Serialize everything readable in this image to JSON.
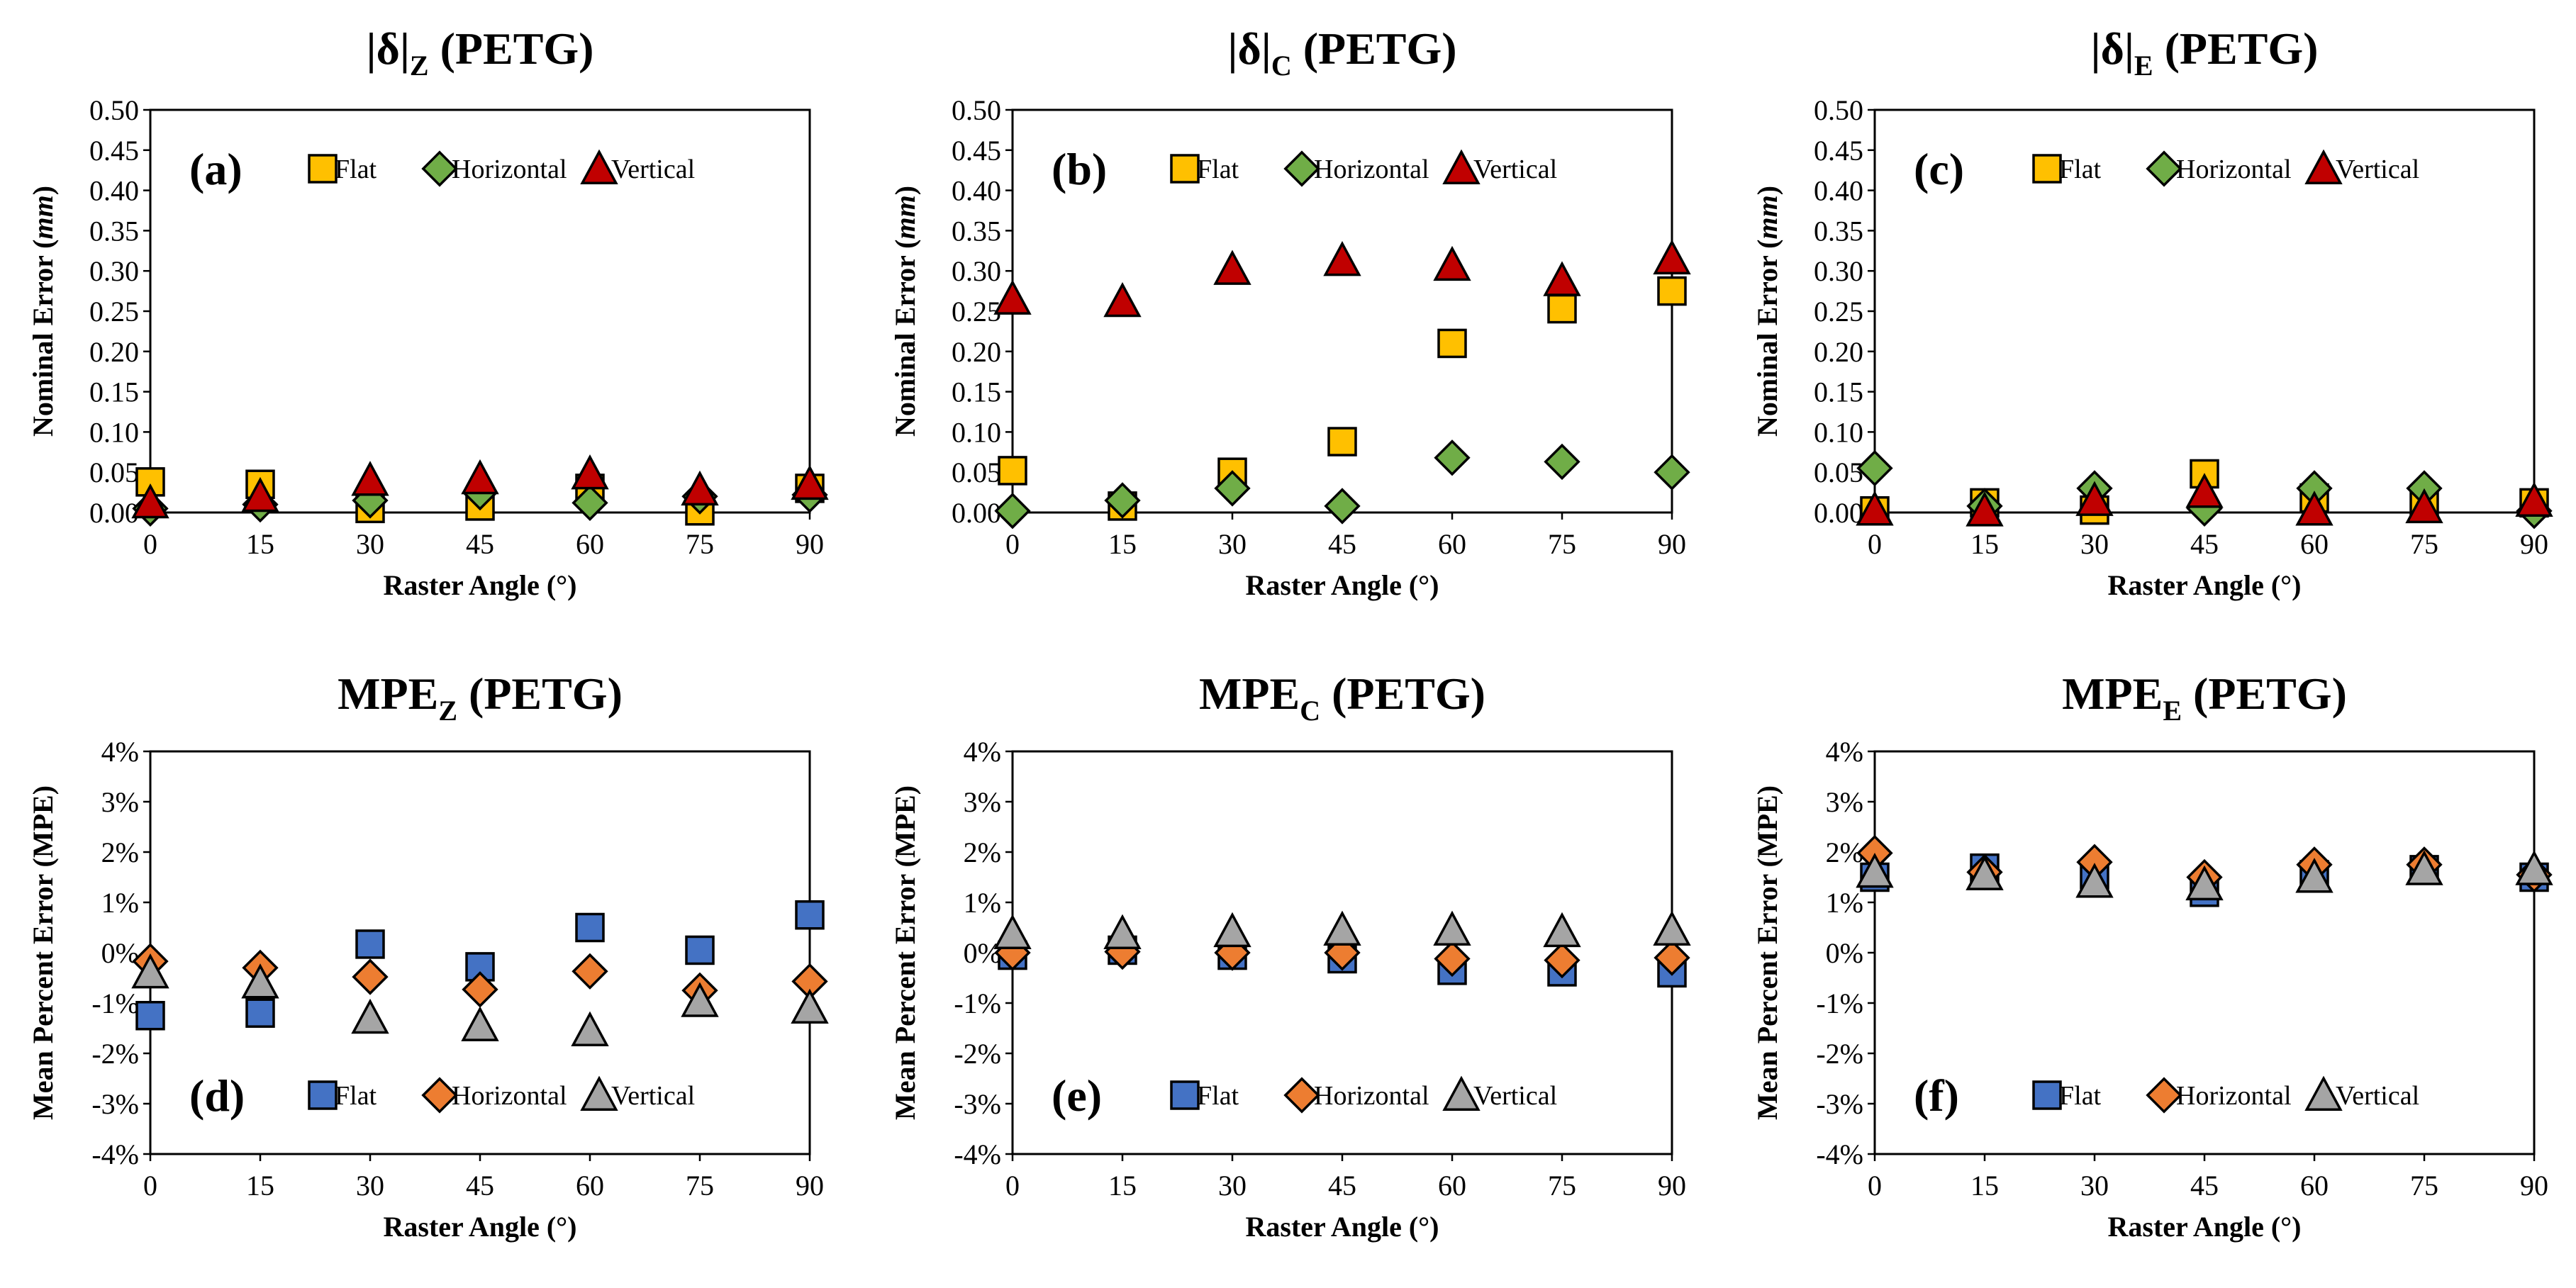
{
  "figure_name": "PETG raster angle error figure",
  "colors": {
    "flat_top": "#FFC000",
    "horizontal_top": "#70AD47",
    "vertical_top": "#C00000",
    "flat_bottom": "#4472C4",
    "horizontal_bottom": "#ED7D31",
    "vertical_bottom": "#A5A5A5",
    "marker_edge": "#000000"
  },
  "chart_data": [
    {
      "id": "a",
      "type": "scatter",
      "title": "|δ|",
      "title_subscript": "Z",
      "title_suffix": "(PETG)",
      "panel_label": "(a)",
      "xlabel": "Raster Angle (°)",
      "ylabel_prefix": "Nominal  Error (",
      "ylabel_unit": "mm",
      "ylabel_suffix": ")",
      "x": [
        0,
        15,
        30,
        45,
        60,
        75,
        90
      ],
      "xlim": [
        0,
        90
      ],
      "ylim": [
        0,
        0.5
      ],
      "yticks": [
        0,
        0.05,
        0.1,
        0.15,
        0.2,
        0.25,
        0.3,
        0.35,
        0.4,
        0.45,
        0.5
      ],
      "ytick_labels": [
        "0.00",
        "0.05",
        "0.10",
        "0.15",
        "0.20",
        "0.25",
        "0.30",
        "0.35",
        "0.40",
        "0.45",
        "0.50"
      ],
      "xtick_labels": [
        "0",
        "15",
        "30",
        "45",
        "60",
        "75",
        "90"
      ],
      "legend_position": "top",
      "series": [
        {
          "name": "Flat",
          "marker": "square",
          "color_key": "flat_top",
          "values": [
            0.038,
            0.035,
            0.005,
            0.008,
            0.03,
            0.002,
            0.03
          ]
        },
        {
          "name": "Horizontal",
          "marker": "diamond",
          "color_key": "horizontal_top",
          "values": [
            0.005,
            0.01,
            0.015,
            0.025,
            0.012,
            0.02,
            0.022
          ]
        },
        {
          "name": "Vertical",
          "marker": "triangle",
          "color_key": "vertical_top",
          "values": [
            0.012,
            0.02,
            0.04,
            0.042,
            0.048,
            0.028,
            0.035
          ]
        }
      ]
    },
    {
      "id": "b",
      "type": "scatter",
      "title": "|δ|",
      "title_subscript": "C",
      "title_suffix": "(PETG)",
      "panel_label": "(b)",
      "xlabel": "Raster Angle (°)",
      "ylabel_prefix": "Nominal Error (",
      "ylabel_unit": "mm",
      "ylabel_suffix": ")",
      "x": [
        0,
        15,
        30,
        45,
        60,
        75,
        90
      ],
      "xlim": [
        0,
        90
      ],
      "ylim": [
        0,
        0.5
      ],
      "yticks": [
        0,
        0.05,
        0.1,
        0.15,
        0.2,
        0.25,
        0.3,
        0.35,
        0.4,
        0.45,
        0.5
      ],
      "ytick_labels": [
        "0.00",
        "0.05",
        "0.10",
        "0.15",
        "0.20",
        "0.25",
        "0.30",
        "0.35",
        "0.40",
        "0.45",
        "0.50"
      ],
      "xtick_labels": [
        "0",
        "15",
        "30",
        "45",
        "60",
        "75",
        "90"
      ],
      "legend_position": "top",
      "series": [
        {
          "name": "Flat",
          "marker": "square",
          "color_key": "flat_top",
          "values": [
            0.052,
            0.008,
            0.05,
            0.088,
            0.21,
            0.253,
            0.275
          ]
        },
        {
          "name": "Horizontal",
          "marker": "diamond",
          "color_key": "horizontal_top",
          "values": [
            0.002,
            0.015,
            0.03,
            0.008,
            0.068,
            0.063,
            0.05
          ]
        },
        {
          "name": "Vertical",
          "marker": "triangle",
          "color_key": "vertical_top",
          "values": [
            0.265,
            0.262,
            0.302,
            0.313,
            0.307,
            0.288,
            0.315
          ]
        }
      ]
    },
    {
      "id": "c",
      "type": "scatter",
      "title": "|δ|",
      "title_subscript": "E",
      "title_suffix": "(PETG)",
      "panel_label": "(c)",
      "xlabel": "Raster Angle (°)",
      "ylabel_prefix": "Nominal Error (",
      "ylabel_unit": "mm",
      "ylabel_suffix": ")",
      "x": [
        0,
        15,
        30,
        45,
        60,
        75,
        90
      ],
      "xlim": [
        0,
        90
      ],
      "ylim": [
        0,
        0.5
      ],
      "yticks": [
        0,
        0.05,
        0.1,
        0.15,
        0.2,
        0.25,
        0.3,
        0.35,
        0.4,
        0.45,
        0.5
      ],
      "ytick_labels": [
        "0.00",
        "0.05",
        "0.10",
        "0.15",
        "0.20",
        "0.25",
        "0.30",
        "0.35",
        "0.40",
        "0.45",
        "0.50"
      ],
      "xtick_labels": [
        "0",
        "15",
        "30",
        "45",
        "60",
        "75",
        "90"
      ],
      "legend_position": "top",
      "series": [
        {
          "name": "Flat",
          "marker": "square",
          "color_key": "flat_top",
          "values": [
            0.002,
            0.012,
            0.003,
            0.048,
            0.018,
            0.01,
            0.012
          ]
        },
        {
          "name": "Horizontal",
          "marker": "diamond",
          "color_key": "horizontal_top",
          "values": [
            0.055,
            0.008,
            0.03,
            0.005,
            0.03,
            0.03,
            0.002
          ]
        },
        {
          "name": "Vertical",
          "marker": "triangle",
          "color_key": "vertical_top",
          "values": [
            0.003,
            0.002,
            0.015,
            0.025,
            0.003,
            0.006,
            0.014
          ]
        }
      ]
    },
    {
      "id": "d",
      "type": "scatter",
      "title": "MPE",
      "title_subscript": "Z",
      "title_suffix": "(PETG)",
      "panel_label": "(d)",
      "xlabel": "Raster Angle (°)",
      "ylabel_prefix": "Mean Percent Error (MPE)",
      "ylabel_unit": "",
      "ylabel_suffix": "",
      "x": [
        0,
        15,
        30,
        45,
        60,
        75,
        90
      ],
      "xlim": [
        0,
        90
      ],
      "ylim": [
        -4,
        4
      ],
      "yticks": [
        -4,
        -3,
        -2,
        -1,
        0,
        1,
        2,
        3,
        4
      ],
      "ytick_labels": [
        "-4%",
        "-3%",
        "-2%",
        "-1%",
        "0%",
        "1%",
        "2%",
        "3%",
        "4%"
      ],
      "xtick_labels": [
        "0",
        "15",
        "30",
        "45",
        "60",
        "75",
        "90"
      ],
      "legend_position": "bottom",
      "series": [
        {
          "name": "Flat",
          "marker": "square",
          "color_key": "flat_bottom",
          "values": [
            -1.25,
            -1.2,
            0.17,
            -0.28,
            0.5,
            0.05,
            0.75
          ]
        },
        {
          "name": "Horizontal",
          "marker": "diamond",
          "color_key": "horizontal_bottom",
          "values": [
            -0.17,
            -0.3,
            -0.48,
            -0.73,
            -0.37,
            -0.75,
            -0.57
          ]
        },
        {
          "name": "Vertical",
          "marker": "triangle",
          "color_key": "vertical_bottom",
          "values": [
            -0.4,
            -0.6,
            -1.3,
            -1.45,
            -1.55,
            -0.97,
            -1.1
          ]
        }
      ]
    },
    {
      "id": "e",
      "type": "scatter",
      "title": "MPE",
      "title_subscript": "C",
      "title_suffix": "(PETG)",
      "panel_label": "(e)",
      "xlabel": "Raster Angle (°)",
      "ylabel_prefix": "Mean Percent Error (MPE)",
      "ylabel_unit": "",
      "ylabel_suffix": "",
      "x": [
        0,
        15,
        30,
        45,
        60,
        75,
        90
      ],
      "xlim": [
        0,
        90
      ],
      "ylim": [
        -4,
        4
      ],
      "yticks": [
        -4,
        -3,
        -2,
        -1,
        0,
        1,
        2,
        3,
        4
      ],
      "ytick_labels": [
        "-4%",
        "-3%",
        "-2%",
        "-1%",
        "0%",
        "1%",
        "2%",
        "3%",
        "4%"
      ],
      "xtick_labels": [
        "0",
        "15",
        "30",
        "45",
        "60",
        "75",
        "90"
      ],
      "legend_position": "bottom",
      "series": [
        {
          "name": "Flat",
          "marker": "square",
          "color_key": "flat_bottom",
          "values": [
            -0.05,
            0.05,
            -0.05,
            -0.12,
            -0.35,
            -0.38,
            -0.4
          ]
        },
        {
          "name": "Horizontal",
          "marker": "diamond",
          "color_key": "horizontal_bottom",
          "values": [
            0.0,
            0.02,
            0.0,
            0.0,
            -0.12,
            -0.15,
            -0.1
          ]
        },
        {
          "name": "Vertical",
          "marker": "triangle",
          "color_key": "vertical_bottom",
          "values": [
            0.38,
            0.38,
            0.42,
            0.45,
            0.45,
            0.42,
            0.45
          ]
        }
      ]
    },
    {
      "id": "f",
      "type": "scatter",
      "title": "MPE",
      "title_subscript": "E",
      "title_suffix": "(PETG)",
      "panel_label": "(f)",
      "xlabel": "Raster Angle (°)",
      "ylabel_prefix": "Mean Percent Error (MPE)",
      "ylabel_unit": "",
      "ylabel_suffix": "",
      "x": [
        0,
        15,
        30,
        45,
        60,
        75,
        90
      ],
      "xlim": [
        0,
        90
      ],
      "ylim": [
        -4,
        4
      ],
      "yticks": [
        -4,
        -3,
        -2,
        -1,
        0,
        1,
        2,
        3,
        4
      ],
      "ytick_labels": [
        "-4%",
        "-3%",
        "-2%",
        "-1%",
        "0%",
        "1%",
        "2%",
        "3%",
        "4%"
      ],
      "xtick_labels": [
        "0",
        "15",
        "30",
        "45",
        "60",
        "75",
        "90"
      ],
      "legend_position": "bottom",
      "series": [
        {
          "name": "Flat",
          "marker": "square",
          "color_key": "flat_bottom",
          "values": [
            1.5,
            1.68,
            1.55,
            1.2,
            1.55,
            1.65,
            1.5
          ]
        },
        {
          "name": "Horizontal",
          "marker": "diamond",
          "color_key": "horizontal_bottom",
          "values": [
            1.98,
            1.6,
            1.8,
            1.5,
            1.75,
            1.75,
            1.55
          ]
        },
        {
          "name": "Vertical",
          "marker": "triangle",
          "color_key": "vertical_bottom",
          "values": [
            1.6,
            1.55,
            1.4,
            1.35,
            1.5,
            1.65,
            1.65
          ]
        }
      ]
    }
  ]
}
